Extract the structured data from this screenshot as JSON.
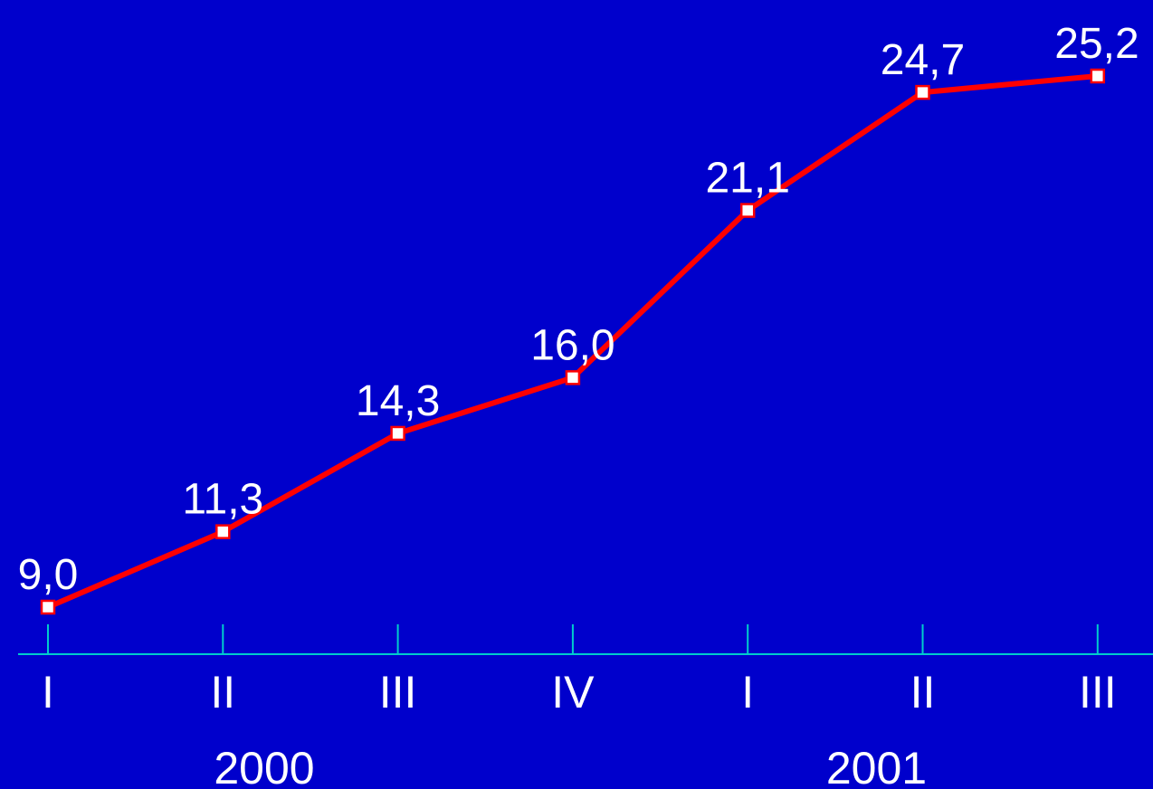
{
  "chart_data": {
    "type": "line",
    "categories": [
      "I",
      "II",
      "III",
      "IV",
      "I",
      "II",
      "III"
    ],
    "groups": [
      {
        "label": "2000",
        "categories": [
          "I",
          "II",
          "III",
          "IV"
        ]
      },
      {
        "label": "2001",
        "categories": [
          "I",
          "II",
          "III"
        ]
      }
    ],
    "series": [
      {
        "values": [
          9.0,
          11.3,
          14.3,
          16.0,
          21.1,
          24.7,
          25.2
        ],
        "data_labels": [
          "9,0",
          "11,3",
          "14,3",
          "16,0",
          "21,1",
          "24,7",
          "25,2"
        ],
        "color": "#ff0000",
        "marker_fill": "#ffffff"
      }
    ],
    "title": "",
    "xlabel": "",
    "ylabel": "",
    "grid": false,
    "legend": "none",
    "colors": {
      "background": "#0000cc",
      "axis": "#00cccc",
      "text": "#ffffff"
    }
  }
}
